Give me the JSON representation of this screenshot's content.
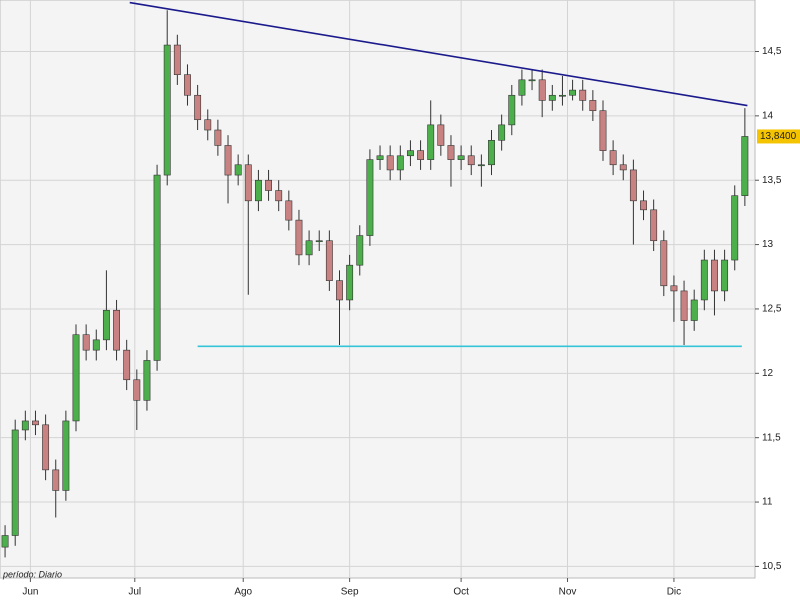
{
  "chart_data": {
    "type": "candlestick",
    "x": [
      0,
      2,
      4,
      6,
      8,
      10,
      12,
      14,
      16,
      18,
      20,
      22,
      24,
      26,
      28,
      30,
      32,
      34,
      36,
      38,
      40,
      42,
      44,
      46,
      48,
      50,
      52,
      54,
      56,
      58,
      60,
      62,
      64,
      66,
      68,
      70,
      72,
      74,
      76,
      78,
      80,
      82,
      84,
      86,
      88,
      90,
      92,
      94,
      96,
      98,
      100,
      102,
      104,
      106,
      108,
      110,
      112,
      114,
      116,
      118,
      120,
      122,
      124,
      126,
      128,
      130,
      132,
      134,
      136,
      138,
      140,
      142,
      144,
      146
    ],
    "open": [
      10.65,
      10.74,
      11.56,
      11.63,
      11.6,
      11.25,
      11.09,
      11.63,
      12.3,
      12.18,
      12.26,
      12.49,
      12.18,
      11.95,
      11.79,
      12.1,
      13.54,
      14.55,
      14.32,
      14.16,
      13.97,
      13.89,
      13.77,
      13.54,
      13.62,
      13.34,
      13.5,
      13.42,
      13.34,
      13.19,
      12.92,
      13.03,
      13.03,
      12.72,
      12.57,
      12.84,
      13.07,
      13.66,
      13.69,
      13.58,
      13.69,
      13.73,
      13.66,
      13.93,
      13.77,
      13.66,
      13.69,
      13.62,
      13.62,
      13.81,
      13.93,
      14.16,
      14.28,
      14.28,
      14.12,
      14.16,
      14.16,
      14.2,
      14.12,
      14.04,
      13.73,
      13.62,
      13.58,
      13.34,
      13.27,
      13.03,
      12.68,
      12.64,
      12.41,
      12.57,
      12.88,
      12.64,
      12.88,
      13.38
    ],
    "high": [
      10.82,
      11.64,
      11.71,
      11.71,
      11.68,
      11.33,
      11.71,
      12.38,
      12.38,
      12.34,
      12.8,
      12.57,
      12.26,
      12.03,
      12.18,
      13.62,
      14.82,
      14.63,
      14.4,
      14.24,
      14.05,
      13.97,
      13.85,
      13.7,
      13.7,
      13.58,
      13.58,
      13.5,
      13.42,
      13.27,
      13.11,
      13.11,
      13.11,
      12.8,
      12.92,
      13.15,
      13.74,
      13.77,
      13.77,
      13.77,
      13.81,
      13.81,
      14.12,
      14.01,
      13.85,
      13.77,
      13.77,
      13.7,
      13.89,
      14.01,
      14.24,
      14.36,
      14.36,
      14.36,
      14.24,
      14.31,
      14.28,
      14.28,
      14.2,
      14.12,
      13.81,
      13.7,
      13.66,
      13.42,
      13.35,
      13.11,
      12.76,
      12.72,
      12.65,
      12.96,
      12.96,
      12.96,
      13.46,
      14.06
    ],
    "low": [
      10.57,
      10.66,
      11.48,
      11.52,
      11.17,
      10.88,
      11.01,
      11.55,
      12.1,
      12.1,
      12.18,
      12.1,
      11.87,
      11.56,
      11.71,
      12.02,
      13.46,
      14.24,
      14.08,
      13.89,
      13.81,
      13.69,
      13.32,
      13.46,
      12.61,
      13.26,
      13.34,
      13.26,
      13.11,
      12.84,
      12.84,
      12.95,
      12.64,
      12.22,
      12.49,
      12.76,
      12.99,
      13.58,
      13.5,
      13.5,
      13.61,
      13.58,
      13.58,
      13.69,
      13.45,
      13.58,
      13.54,
      13.45,
      13.54,
      13.73,
      13.85,
      14.08,
      14.2,
      13.99,
      14.04,
      14.08,
      14.12,
      14.04,
      13.96,
      13.65,
      13.54,
      13.5,
      13.0,
      13.19,
      12.95,
      12.6,
      12.4,
      12.22,
      12.33,
      12.49,
      12.45,
      12.56,
      12.8,
      13.3
    ],
    "close": [
      10.74,
      11.56,
      11.63,
      11.6,
      11.25,
      11.09,
      11.63,
      12.3,
      12.18,
      12.26,
      12.49,
      12.18,
      11.95,
      11.79,
      12.1,
      13.54,
      14.55,
      14.32,
      14.16,
      13.97,
      13.89,
      13.77,
      13.54,
      13.62,
      13.34,
      13.5,
      13.42,
      13.34,
      13.19,
      12.92,
      13.03,
      13.03,
      12.72,
      12.57,
      12.84,
      13.07,
      13.66,
      13.69,
      13.58,
      13.69,
      13.73,
      13.66,
      13.93,
      13.77,
      13.66,
      13.69,
      13.62,
      13.62,
      13.81,
      13.93,
      14.16,
      14.28,
      14.28,
      14.12,
      14.16,
      14.16,
      14.2,
      14.12,
      14.04,
      13.73,
      13.62,
      13.58,
      13.34,
      13.27,
      13.03,
      12.68,
      12.64,
      12.41,
      12.57,
      12.88,
      12.64,
      12.88,
      13.38,
      13.84
    ],
    "up_color": "#4caf4c",
    "down_color": "#c98282",
    "xlim": [
      -1,
      148
    ],
    "xticks": [
      {
        "value": 5,
        "label": "Jun"
      },
      {
        "value": 25.6,
        "label": "Jul"
      },
      {
        "value": 47,
        "label": "Ago"
      },
      {
        "value": 68,
        "label": "Sep"
      },
      {
        "value": 90,
        "label": "Oct"
      },
      {
        "value": 111,
        "label": "Nov"
      },
      {
        "value": 132,
        "label": "Dic"
      }
    ],
    "ylim": [
      10.41,
      14.9
    ],
    "yticks": [
      {
        "value": 10.5,
        "label": "10,5"
      },
      11,
      {
        "value": 11.5,
        "label": "11,5"
      },
      12,
      {
        "value": 12.5,
        "label": "12,5"
      },
      13,
      {
        "value": 13.5,
        "label": "13,5"
      },
      14,
      {
        "value": 14.5,
        "label": "14,5"
      }
    ],
    "grid": true,
    "lines": [
      {
        "x": [
          24.6,
          146.5
        ],
        "y": [
          14.88,
          14.08
        ],
        "color": "#1a1a8c"
      },
      {
        "x": [
          38,
          145.4
        ],
        "y": [
          12.21,
          12.21
        ],
        "color": "#33c4d8"
      }
    ],
    "last_price": {
      "value": 13.84,
      "label": "13,8400"
    },
    "period_label": "período: Diario"
  }
}
